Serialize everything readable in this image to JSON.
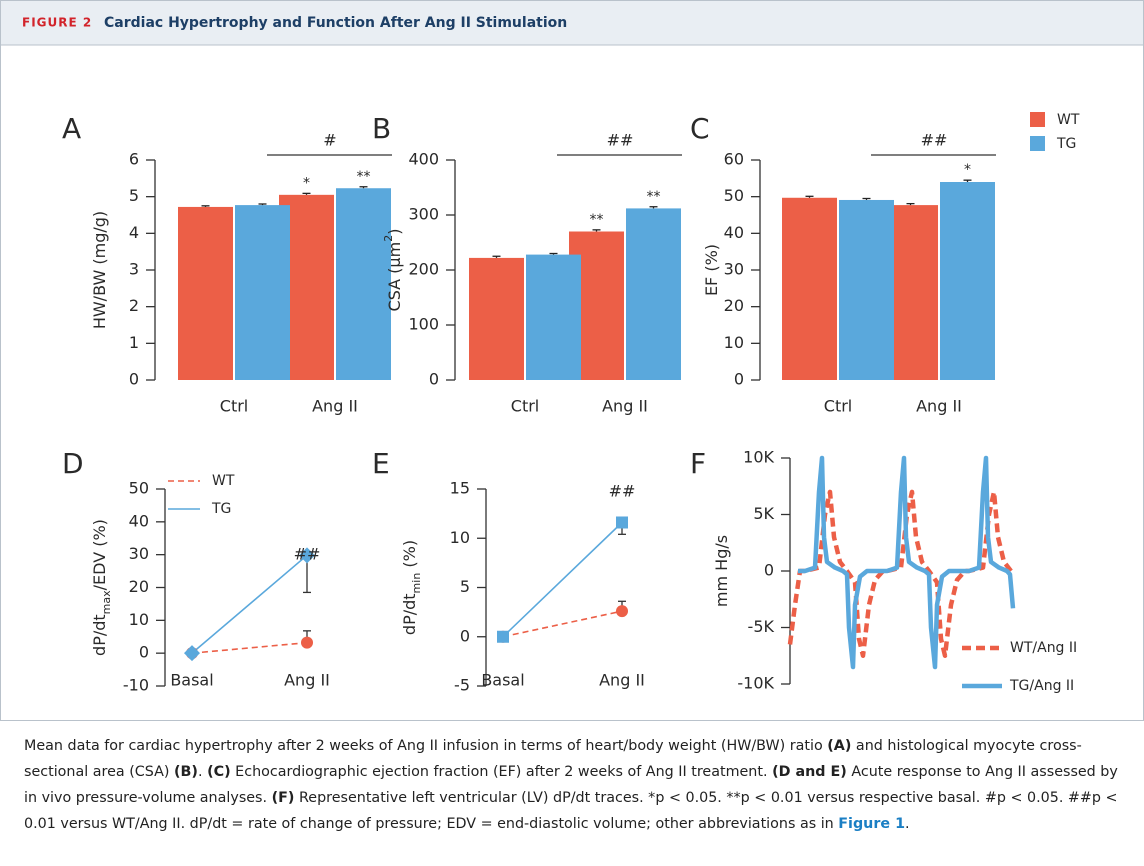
{
  "header": {
    "label": "FIGURE 2",
    "title": "Cardiac Hypertrophy and Function After Ang II Stimulation"
  },
  "chart_data": [
    {
      "type": "bar",
      "panel": "A",
      "ylabel": [
        "HW/BW (mg/g)"
      ],
      "categories": [
        "Ctrl",
        "Ang II"
      ],
      "series": [
        {
          "color": "#ec5f47",
          "values": [
            4.72,
            5.05
          ],
          "errors": [
            0.03,
            0.04
          ],
          "stars": [
            null,
            "*"
          ]
        },
        {
          "color": "#5aa8dc",
          "values": [
            4.77,
            5.23
          ],
          "errors": [
            0.03,
            0.04
          ],
          "stars": [
            null,
            "**"
          ]
        }
      ],
      "ylim": [
        0,
        6
      ],
      "yticks": [
        0,
        1,
        2,
        3,
        4,
        5,
        6
      ],
      "bracket": "#"
    },
    {
      "type": "bar",
      "panel": "B",
      "ylabel": [
        "CSA (μm",
        "2",
        ")"
      ],
      "ylabel_script": "super",
      "categories": [
        "Ctrl",
        "Ang II"
      ],
      "series": [
        {
          "color": "#ec5f47",
          "values": [
            222,
            270
          ],
          "errors": [
            3,
            3
          ],
          "stars": [
            null,
            "**"
          ]
        },
        {
          "color": "#5aa8dc",
          "values": [
            228,
            312
          ],
          "errors": [
            2,
            3
          ],
          "stars": [
            null,
            "**"
          ]
        }
      ],
      "ylim": [
        0,
        400
      ],
      "yticks": [
        0,
        100,
        200,
        300,
        400
      ],
      "bracket": "##"
    },
    {
      "type": "bar",
      "panel": "C",
      "ylabel": [
        "EF (%)"
      ],
      "categories": [
        "Ctrl",
        "Ang II"
      ],
      "series": [
        {
          "name": "WT",
          "color": "#ec5f47",
          "values": [
            49.7,
            47.7
          ],
          "errors": [
            0.4,
            0.4
          ],
          "stars": [
            null,
            null
          ]
        },
        {
          "name": "TG",
          "color": "#5aa8dc",
          "values": [
            49.1,
            54.0
          ],
          "errors": [
            0.4,
            0.5
          ],
          "stars": [
            null,
            "*"
          ]
        }
      ],
      "ylim": [
        0,
        60
      ],
      "yticks": [
        0,
        10,
        20,
        30,
        40,
        50,
        60
      ],
      "bracket": "##",
      "legend": "top-right"
    },
    {
      "type": "line",
      "panel": "D",
      "ylabel": [
        "dP/dt",
        "max",
        "/EDV (%)"
      ],
      "ylabel_script": "sub",
      "categories": [
        "Basal",
        "Ang II"
      ],
      "series": [
        {
          "name": "WT",
          "color": "#ec5f47",
          "dash": true,
          "marker": "circle",
          "values": [
            0,
            3.2
          ],
          "errors": [
            null,
            3.6
          ],
          "error_side": "up"
        },
        {
          "name": "TG",
          "color": "#5aa8dc",
          "dash": false,
          "marker": "diamond",
          "values": [
            0,
            29.8
          ],
          "errors": [
            null,
            11.3
          ],
          "error_side": "down"
        }
      ],
      "ylim": [
        -10,
        50
      ],
      "yticks": [
        -10,
        0,
        10,
        20,
        30,
        40,
        50
      ],
      "annotation": "##",
      "legend": "top-left"
    },
    {
      "type": "line",
      "panel": "E",
      "ylabel": [
        "dP/dt",
        "min",
        " (%)"
      ],
      "ylabel_script": "sub",
      "categories": [
        "Basal",
        "Ang II"
      ],
      "series": [
        {
          "color": "#ec5f47",
          "dash": true,
          "marker": "circle",
          "values": [
            0,
            2.6
          ],
          "errors": [
            null,
            1.0
          ],
          "error_side": "up"
        },
        {
          "color": "#5aa8dc",
          "dash": false,
          "marker": "square",
          "values": [
            0,
            11.6
          ],
          "errors": [
            null,
            1.2
          ],
          "error_side": "down"
        }
      ],
      "ylim": [
        -5,
        15
      ],
      "yticks": [
        -5,
        0,
        5,
        10,
        15
      ],
      "annotation": "##"
    },
    {
      "type": "line",
      "panel": "F",
      "ylabel": [
        "mm Hg/s"
      ],
      "series": [
        {
          "name": "WT/Ang II",
          "color": "#ec5f47",
          "dash": true,
          "x": [
            0,
            5,
            10,
            15,
            29,
            35,
            40,
            44,
            50,
            57,
            65,
            69,
            73,
            79,
            85,
            93,
            97,
            111,
            117,
            122,
            126,
            132,
            139,
            147,
            151,
            155,
            161,
            167,
            175,
            179,
            193,
            199,
            204,
            208,
            214,
            221
          ],
          "values": [
            -6500,
            -3000,
            0,
            0,
            300,
            5000,
            7000,
            3000,
            800,
            0,
            -1000,
            -6000,
            -7500,
            -3000,
            -800,
            0,
            0,
            300,
            5000,
            7000,
            3000,
            800,
            0,
            -1000,
            -6000,
            -7500,
            -3000,
            -800,
            0,
            0,
            300,
            5000,
            7000,
            3000,
            800,
            0
          ]
        },
        {
          "name": "TG/Ang II",
          "color": "#5aa8dc",
          "dash": false,
          "x": [
            8,
            15,
            25,
            29,
            32,
            34,
            37,
            45,
            53,
            57,
            59,
            63,
            65,
            70,
            77,
            97,
            107,
            111,
            114,
            116,
            119,
            127,
            135,
            139,
            141,
            145,
            147,
            152,
            159,
            179,
            189,
            193,
            196,
            198,
            201,
            209,
            217,
            220,
            223
          ],
          "values": [
            0,
            0,
            300,
            7000,
            10000,
            3000,
            800,
            300,
            0,
            -300,
            -5000,
            -8500,
            -3000,
            -500,
            0,
            0,
            300,
            7000,
            10000,
            3000,
            800,
            300,
            0,
            -300,
            -5000,
            -8500,
            -3000,
            -500,
            0,
            0,
            300,
            7000,
            10000,
            3000,
            800,
            300,
            0,
            -300,
            -3300
          ]
        }
      ],
      "xlim": [
        0,
        225
      ],
      "ylim": [
        -10000,
        10000
      ],
      "yticks": [
        {
          "value": -10000,
          "label": "-10K"
        },
        {
          "value": -5000,
          "label": "-5K"
        },
        0,
        {
          "value": 5000,
          "label": "5K"
        },
        {
          "value": 10000,
          "label": "10K"
        }
      ],
      "legend": "bottom-right"
    }
  ],
  "caption": [
    {
      "text": "Mean data for cardiac hypertrophy after 2 weeks of Ang II infusion in terms of heart/body weight (HW/BW) ratio ",
      "style": "normal"
    },
    {
      "text": "(A)",
      "style": "bold"
    },
    {
      "text": " and histological myocyte cross-sectional area (CSA) ",
      "style": "normal"
    },
    {
      "text": "(B)",
      "style": "bold"
    },
    {
      "text": ". ",
      "style": "normal"
    },
    {
      "text": "(C)",
      "style": "bold"
    },
    {
      "text": " Echocardiographic ejection fraction (EF) after 2 weeks of Ang II treatment. ",
      "style": "normal"
    },
    {
      "text": "(D and E)",
      "style": "bold"
    },
    {
      "text": " Acute response to Ang II assessed by in vivo pressure-volume analyses. ",
      "style": "normal"
    },
    {
      "text": "(F)",
      "style": "bold"
    },
    {
      "text": " Representative left ventricular (LV) dP/dt traces. *p < 0.05. **p < 0.01 versus respective basal. #p < 0.05. ##p < 0.01 versus WT/Ang II. dP/dt = rate of change of pressure; EDV = end-diastolic volume; other abbreviations as in ",
      "style": "normal"
    },
    {
      "text": "Figure 1",
      "style": "link"
    },
    {
      "text": ".",
      "style": "normal"
    }
  ]
}
